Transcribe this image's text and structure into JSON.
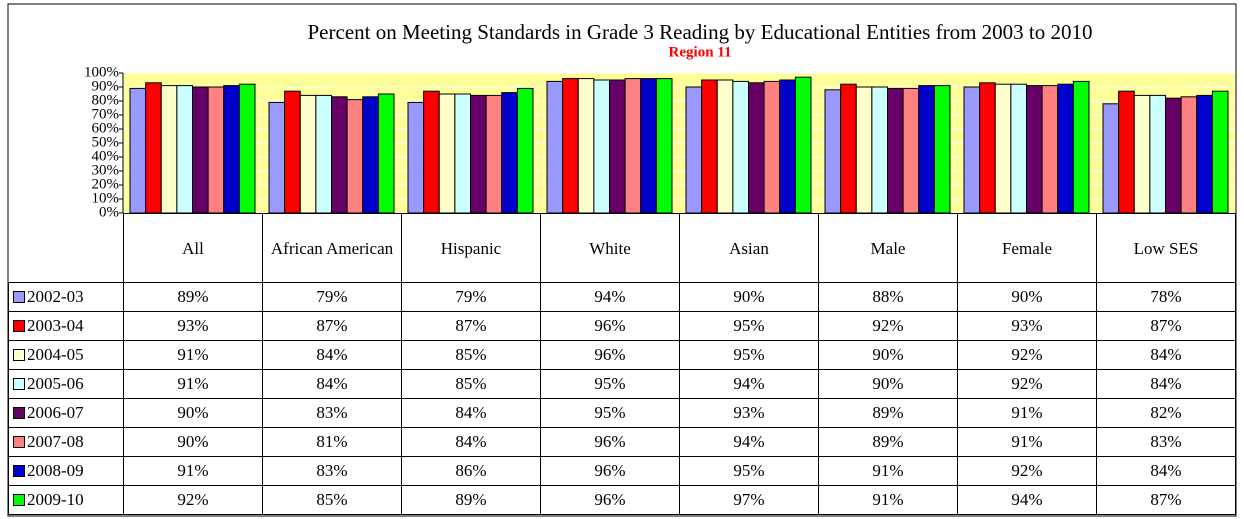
{
  "chart_data": {
    "type": "bar",
    "title": "Percent on Meeting Standards in Grade 3 Reading by Educational Entities from 2003 to 2010",
    "subtitle": "Region 11",
    "categories": [
      "All",
      "African American",
      "Hispanic",
      "White",
      "Asian",
      "Male",
      "Female",
      "Low SES"
    ],
    "ylim": [
      0,
      100
    ],
    "yticks": [
      {
        "value": 0,
        "label": "0%"
      },
      {
        "value": 10,
        "label": "10%"
      },
      {
        "value": 20,
        "label": "20%"
      },
      {
        "value": 30,
        "label": "30%"
      },
      {
        "value": 40,
        "label": "40%"
      },
      {
        "value": 50,
        "label": "50%"
      },
      {
        "value": 60,
        "label": "60%"
      },
      {
        "value": 70,
        "label": "70%"
      },
      {
        "value": 80,
        "label": "80%"
      },
      {
        "value": 90,
        "label": "90%"
      },
      {
        "value": 100,
        "label": "100%"
      }
    ],
    "grid": true,
    "series": [
      {
        "name": "2002-03",
        "color": "#9999ff",
        "values": [
          89,
          79,
          79,
          94,
          90,
          88,
          90,
          78
        ],
        "value_labels": [
          "89%",
          "79%",
          "79%",
          "94%",
          "90%",
          "88%",
          "90%",
          "78%"
        ]
      },
      {
        "name": "2003-04",
        "color": "#ff0000",
        "values": [
          93,
          87,
          87,
          96,
          95,
          92,
          93,
          87
        ],
        "value_labels": [
          "93%",
          "87%",
          "87%",
          "96%",
          "95%",
          "92%",
          "93%",
          "87%"
        ]
      },
      {
        "name": "2004-05",
        "color": "#ffffcc",
        "values": [
          91,
          84,
          85,
          96,
          95,
          90,
          92,
          84
        ],
        "value_labels": [
          "91%",
          "84%",
          "85%",
          "96%",
          "95%",
          "90%",
          "92%",
          "84%"
        ]
      },
      {
        "name": "2005-06",
        "color": "#ccffff",
        "values": [
          91,
          84,
          85,
          95,
          94,
          90,
          92,
          84
        ],
        "value_labels": [
          "91%",
          "84%",
          "85%",
          "95%",
          "94%",
          "90%",
          "92%",
          "84%"
        ]
      },
      {
        "name": "2006-07",
        "color": "#660066",
        "values": [
          90,
          83,
          84,
          95,
          93,
          89,
          91,
          82
        ],
        "value_labels": [
          "90%",
          "83%",
          "84%",
          "95%",
          "93%",
          "89%",
          "91%",
          "82%"
        ]
      },
      {
        "name": "2007-08",
        "color": "#ff8080",
        "values": [
          90,
          81,
          84,
          96,
          94,
          89,
          91,
          83
        ],
        "value_labels": [
          "90%",
          "81%",
          "84%",
          "96%",
          "94%",
          "89%",
          "91%",
          "83%"
        ]
      },
      {
        "name": "2008-09",
        "color": "#0000cc",
        "values": [
          91,
          83,
          86,
          96,
          95,
          91,
          92,
          84
        ],
        "value_labels": [
          "91%",
          "83%",
          "86%",
          "96%",
          "95%",
          "91%",
          "92%",
          "84%"
        ]
      },
      {
        "name": "2009-10",
        "color": "#00ff00",
        "values": [
          92,
          85,
          89,
          96,
          97,
          91,
          94,
          87
        ],
        "value_labels": [
          "92%",
          "85%",
          "89%",
          "96%",
          "97%",
          "91%",
          "94%",
          "87%"
        ]
      }
    ]
  }
}
